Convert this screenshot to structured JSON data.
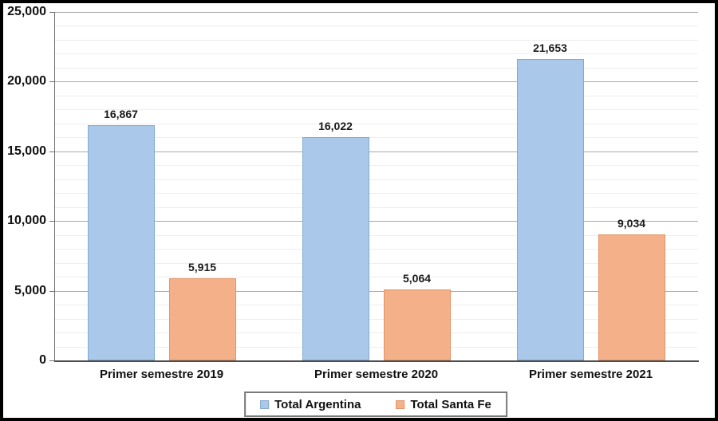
{
  "chart_data": {
    "type": "bar",
    "title": "",
    "categories": [
      "Primer semestre 2019",
      "Primer semestre 2020",
      "Primer semestre 2021"
    ],
    "series": [
      {
        "name": "Total Argentina",
        "values": [
          16867,
          16022,
          21653
        ],
        "labels": [
          "16,867",
          "16,022",
          "21,653"
        ],
        "fill": "#aac9ea",
        "border": "#84a8cd"
      },
      {
        "name": "Total Santa Fe",
        "values": [
          5915,
          5064,
          9034
        ],
        "labels": [
          "5,915",
          "5,064",
          "9,034"
        ],
        "fill": "#f4b089",
        "border": "#e39468"
      }
    ],
    "xlabel": "",
    "ylabel": "",
    "ylim": [
      0,
      25000
    ],
    "y_major_tick": 5000,
    "y_minor_tick": 1000,
    "y_tick_labels": [
      "0",
      "5,000",
      "10,000",
      "15,000",
      "20,000",
      "25,000"
    ],
    "grid": true,
    "legend_position": "bottom-center"
  },
  "colors": {
    "frame_border": "#000000",
    "major_grid": "#a9a9a9",
    "minor_grid": "#eeeeee",
    "axis": "#4d4d4d",
    "text": "#111111"
  }
}
